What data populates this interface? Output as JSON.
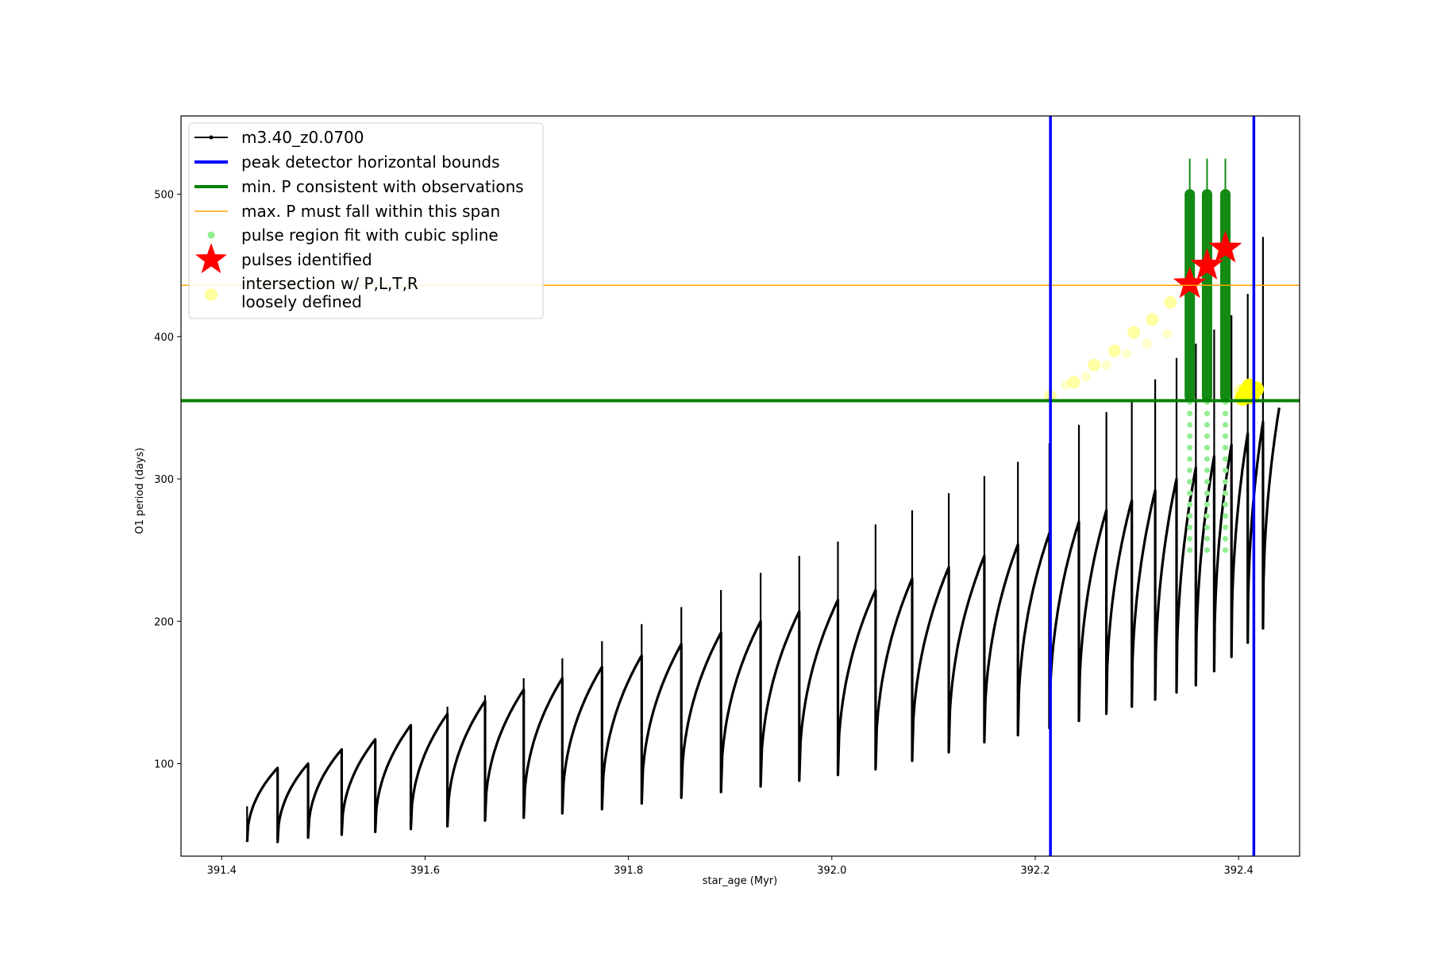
{
  "chart_data": {
    "type": "line",
    "title": "",
    "xlabel": "star_age (Myr)",
    "ylabel": "O1 period (days)",
    "xlim": [
      391.36,
      392.46
    ],
    "ylim": [
      35,
      555
    ],
    "x_ticks": [
      391.4,
      391.6,
      391.8,
      392.0,
      392.2,
      392.4
    ],
    "x_tick_labels": [
      "391.4",
      "391.6",
      "391.8",
      "392.0",
      "392.2",
      "392.4"
    ],
    "y_ticks": [
      100,
      200,
      300,
      400,
      500
    ],
    "y_tick_labels": [
      "100",
      "200",
      "300",
      "400",
      "500"
    ],
    "grid": false,
    "legend_position": "top-left",
    "legend": [
      {
        "label": "m3.40_z0.0700",
        "style": "black-line-dot",
        "color": "#000000"
      },
      {
        "label": "peak detector horizontal bounds",
        "style": "line",
        "color": "#0000ff"
      },
      {
        "label": "min. P consistent with observations",
        "style": "line",
        "color": "#008000"
      },
      {
        "label": "max. P must fall within this span",
        "style": "thin-line",
        "color": "#ffa500"
      },
      {
        "label": "pulse region fit with cubic spline",
        "style": "dot",
        "color": "#90ee90"
      },
      {
        "label": "pulses identified",
        "style": "star",
        "color": "#ff0000"
      },
      {
        "label": "intersection w/ P,L,T,R",
        "style": "big-dot",
        "color": "#ffffa0"
      },
      {
        "label": "loosely defined",
        "style": "none",
        "color": "#ffffa0"
      }
    ],
    "series_color": "#000000",
    "cycles": [
      {
        "t_start": 391.425,
        "t_end": 391.455,
        "p_start": 45,
        "p_top": 97,
        "spike": 70
      },
      {
        "t_start": 391.455,
        "t_end": 391.485,
        "p_start": 45,
        "p_top": 100,
        "spike": 60
      },
      {
        "t_start": 391.485,
        "t_end": 391.518,
        "p_start": 48,
        "p_top": 110,
        "spike": 60
      },
      {
        "t_start": 391.518,
        "t_end": 391.551,
        "p_start": 50,
        "p_top": 117,
        "spike": 60
      },
      {
        "t_start": 391.551,
        "t_end": 391.586,
        "p_start": 52,
        "p_top": 127,
        "spike": 60
      },
      {
        "t_start": 391.586,
        "t_end": 391.622,
        "p_start": 54,
        "p_top": 135,
        "spike": 65
      },
      {
        "t_start": 391.622,
        "t_end": 391.659,
        "p_start": 56,
        "p_top": 144,
        "spike": 140
      },
      {
        "t_start": 391.659,
        "t_end": 391.697,
        "p_start": 60,
        "p_top": 152,
        "spike": 148
      },
      {
        "t_start": 391.697,
        "t_end": 391.735,
        "p_start": 62,
        "p_top": 160,
        "spike": 160
      },
      {
        "t_start": 391.735,
        "t_end": 391.774,
        "p_start": 65,
        "p_top": 168,
        "spike": 174
      },
      {
        "t_start": 391.774,
        "t_end": 391.813,
        "p_start": 68,
        "p_top": 176,
        "spike": 186
      },
      {
        "t_start": 391.813,
        "t_end": 391.852,
        "p_start": 72,
        "p_top": 184,
        "spike": 198
      },
      {
        "t_start": 391.852,
        "t_end": 391.891,
        "p_start": 76,
        "p_top": 192,
        "spike": 210
      },
      {
        "t_start": 391.891,
        "t_end": 391.93,
        "p_start": 80,
        "p_top": 200,
        "spike": 222
      },
      {
        "t_start": 391.93,
        "t_end": 391.968,
        "p_start": 84,
        "p_top": 207,
        "spike": 234
      },
      {
        "t_start": 391.968,
        "t_end": 392.006,
        "p_start": 88,
        "p_top": 215,
        "spike": 246
      },
      {
        "t_start": 392.006,
        "t_end": 392.043,
        "p_start": 92,
        "p_top": 222,
        "spike": 256
      },
      {
        "t_start": 392.043,
        "t_end": 392.079,
        "p_start": 96,
        "p_top": 230,
        "spike": 268
      },
      {
        "t_start": 392.079,
        "t_end": 392.115,
        "p_start": 102,
        "p_top": 238,
        "spike": 278
      },
      {
        "t_start": 392.115,
        "t_end": 392.15,
        "p_start": 108,
        "p_top": 246,
        "spike": 290
      },
      {
        "t_start": 392.15,
        "t_end": 392.183,
        "p_start": 115,
        "p_top": 254,
        "spike": 302
      },
      {
        "t_start": 392.183,
        "t_end": 392.214,
        "p_start": 120,
        "p_top": 262,
        "spike": 312
      },
      {
        "t_start": 392.214,
        "t_end": 392.243,
        "p_start": 125,
        "p_top": 270,
        "spike": 325
      },
      {
        "t_start": 392.243,
        "t_end": 392.27,
        "p_start": 130,
        "p_top": 278,
        "spike": 338
      },
      {
        "t_start": 392.27,
        "t_end": 392.295,
        "p_start": 135,
        "p_top": 285,
        "spike": 347
      },
      {
        "t_start": 392.295,
        "t_end": 392.318,
        "p_start": 140,
        "p_top": 292,
        "spike": 355
      },
      {
        "t_start": 392.318,
        "t_end": 392.339,
        "p_start": 145,
        "p_top": 300,
        "spike": 370
      },
      {
        "t_start": 392.339,
        "t_end": 392.358,
        "p_start": 150,
        "p_top": 308,
        "spike": 385
      },
      {
        "t_start": 392.358,
        "t_end": 392.376,
        "p_start": 155,
        "p_top": 316,
        "spike": 395
      },
      {
        "t_start": 392.376,
        "t_end": 392.393,
        "p_start": 165,
        "p_top": 324,
        "spike": 405
      },
      {
        "t_start": 392.393,
        "t_end": 392.409,
        "p_start": 175,
        "p_top": 332,
        "spike": 415
      },
      {
        "t_start": 392.409,
        "t_end": 392.424,
        "p_start": 185,
        "p_top": 340,
        "spike": 430
      },
      {
        "t_start": 392.424,
        "t_end": 392.44,
        "p_start": 195,
        "p_top": 350,
        "spike": 470
      }
    ],
    "vertical_bounds": [
      392.215,
      392.415
    ],
    "min_period_line": 355,
    "max_period_line": 436,
    "pulses_identified": [
      {
        "x": 392.352,
        "y": 437
      },
      {
        "x": 392.369,
        "y": 450
      },
      {
        "x": 392.387,
        "y": 462
      }
    ],
    "intersection_points": [
      {
        "x": 392.215,
        "y": 358
      },
      {
        "x": 392.238,
        "y": 368
      },
      {
        "x": 392.258,
        "y": 380
      },
      {
        "x": 392.278,
        "y": 390
      },
      {
        "x": 392.297,
        "y": 403
      },
      {
        "x": 392.315,
        "y": 412
      },
      {
        "x": 392.333,
        "y": 424
      },
      {
        "x": 392.35,
        "y": 436
      },
      {
        "x": 392.368,
        "y": 448
      },
      {
        "x": 392.385,
        "y": 460
      },
      {
        "x": 392.402,
        "y": 362
      },
      {
        "x": 392.409,
        "y": 360
      },
      {
        "x": 392.414,
        "y": 362
      }
    ]
  }
}
